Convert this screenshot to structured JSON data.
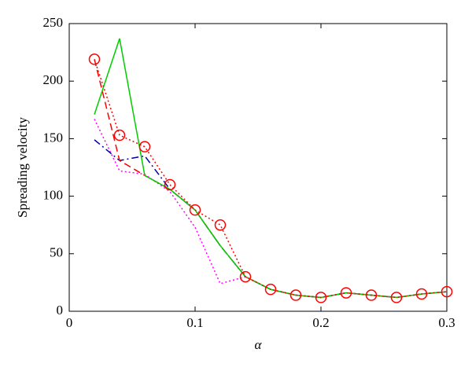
{
  "chart_data": {
    "type": "line",
    "x_label": "α",
    "y_label": "Spreading velocity",
    "x": [
      0.02,
      0.04,
      0.06,
      0.08,
      0.1,
      0.12,
      0.14,
      0.16,
      0.18,
      0.2,
      0.22,
      0.24,
      0.26,
      0.28,
      0.3
    ],
    "series": [
      {
        "color": "#ff00ff",
        "line_style": "dotted",
        "values": [
          167,
          122,
          119,
          104,
          73,
          24,
          30,
          19,
          14,
          12,
          16,
          14,
          12,
          15,
          17
        ]
      },
      {
        "color": "#0000aa",
        "line_style": "dashdot",
        "values": [
          149,
          131,
          135,
          106,
          88,
          57,
          30,
          19,
          14,
          12,
          16,
          14,
          12,
          15,
          17
        ]
      },
      {
        "color": "#ff0000",
        "line_style": "dashed",
        "values": [
          219,
          131,
          118,
          106,
          88,
          57,
          30,
          19,
          14,
          12,
          16,
          14,
          12,
          15,
          17
        ]
      },
      {
        "color": "#00cc00",
        "line_style": "solid",
        "values": [
          171,
          237,
          118,
          106,
          88,
          57,
          30,
          19,
          14,
          12,
          16,
          14,
          12,
          15,
          17
        ]
      },
      {
        "color": "#ff0000",
        "line_style": "dotted",
        "marker": "circle",
        "values": [
          219,
          153,
          143,
          110,
          88,
          75,
          30,
          19,
          14,
          12,
          16,
          14,
          12,
          15,
          17
        ]
      }
    ],
    "xlim": [
      0,
      0.3
    ],
    "xticks": [
      0,
      0.1,
      0.2,
      0.3
    ],
    "ylim": [
      0,
      250
    ],
    "yticks": [
      0,
      50,
      100,
      150,
      200,
      250
    ]
  }
}
